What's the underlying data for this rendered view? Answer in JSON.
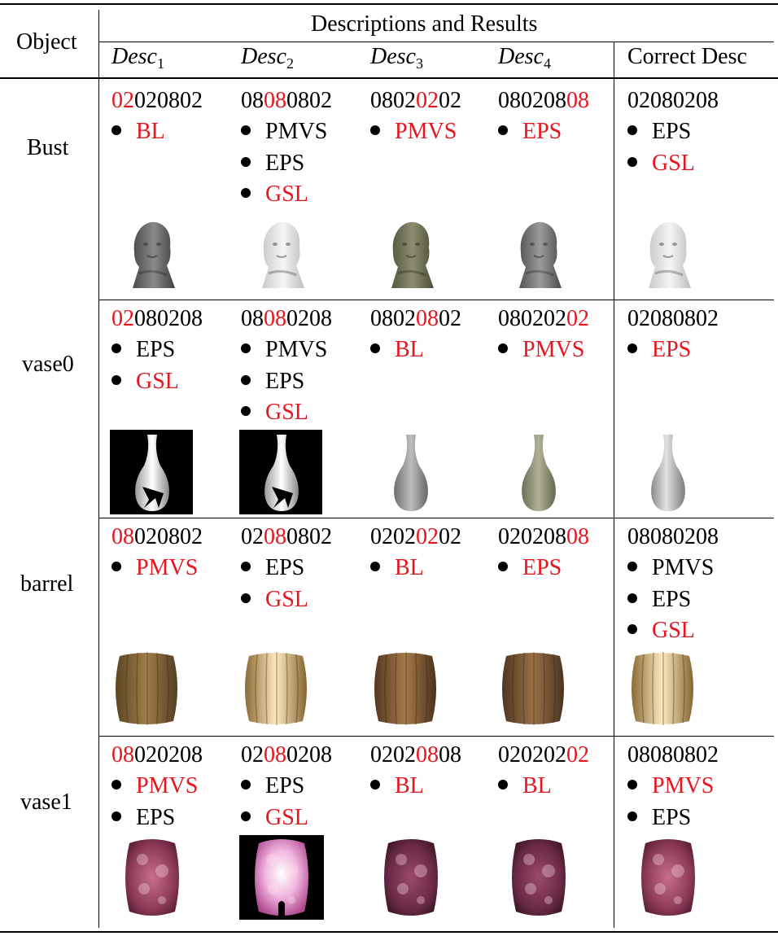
{
  "header": {
    "object": "Object",
    "group": "Descriptions and Results",
    "desc_base": "Desc",
    "desc_subs": [
      "1",
      "2",
      "3",
      "4"
    ],
    "correct": "Correct Desc"
  },
  "colors": {
    "highlight": "#e8141e",
    "text": "#000000"
  },
  "rows": [
    {
      "object": "Bust",
      "cells": [
        {
          "code": [
            [
              "02",
              true
            ],
            [
              "020802",
              false
            ]
          ],
          "methods": [
            [
              "BL",
              true
            ]
          ],
          "thumb": "bust-gray-dark"
        },
        {
          "code": [
            [
              "08",
              false
            ],
            [
              "08",
              true
            ],
            [
              "0802",
              false
            ]
          ],
          "methods": [
            [
              "PMVS",
              false
            ],
            [
              "EPS",
              false
            ],
            [
              "GSL",
              true
            ]
          ],
          "thumb": "bust-white"
        },
        {
          "code": [
            [
              "0802",
              false
            ],
            [
              "02",
              true
            ],
            [
              "02",
              false
            ]
          ],
          "methods": [
            [
              "PMVS",
              true
            ]
          ],
          "thumb": "bust-green"
        },
        {
          "code": [
            [
              "080208",
              false
            ],
            [
              "08",
              true
            ]
          ],
          "methods": [
            [
              "EPS",
              true
            ]
          ],
          "thumb": "bust-gray"
        },
        {
          "code": [
            [
              "02080208",
              false
            ]
          ],
          "methods": [
            [
              "EPS",
              false
            ],
            [
              "GSL",
              true
            ]
          ],
          "thumb": "bust-white"
        }
      ]
    },
    {
      "object": "vase0",
      "cells": [
        {
          "code": [
            [
              "02",
              true
            ],
            [
              "080208",
              false
            ]
          ],
          "methods": [
            [
              "EPS",
              false
            ],
            [
              "GSL",
              true
            ]
          ],
          "thumb": "vase-black-bg"
        },
        {
          "code": [
            [
              "08",
              false
            ],
            [
              "08",
              true
            ],
            [
              "0208",
              false
            ]
          ],
          "methods": [
            [
              "PMVS",
              false
            ],
            [
              "EPS",
              false
            ],
            [
              "GSL",
              true
            ]
          ],
          "thumb": "vase-black-bg"
        },
        {
          "code": [
            [
              "0802",
              false
            ],
            [
              "08",
              true
            ],
            [
              "02",
              false
            ]
          ],
          "methods": [
            [
              "BL",
              true
            ]
          ],
          "thumb": "vase-gray"
        },
        {
          "code": [
            [
              "080202",
              false
            ],
            [
              "02",
              true
            ]
          ],
          "methods": [
            [
              "PMVS",
              true
            ]
          ],
          "thumb": "vase-green"
        },
        {
          "code": [
            [
              "02080802",
              false
            ]
          ],
          "methods": [
            [
              "EPS",
              true
            ]
          ],
          "thumb": "vase-smooth"
        }
      ]
    },
    {
      "object": "barrel",
      "cells": [
        {
          "code": [
            [
              "08",
              true
            ],
            [
              "020802",
              false
            ]
          ],
          "methods": [
            [
              "PMVS",
              true
            ]
          ],
          "thumb": "barrel-dark"
        },
        {
          "code": [
            [
              "02",
              false
            ],
            [
              "08",
              true
            ],
            [
              "0802",
              false
            ]
          ],
          "methods": [
            [
              "EPS",
              false
            ],
            [
              "GSL",
              true
            ]
          ],
          "thumb": "barrel-light"
        },
        {
          "code": [
            [
              "0202",
              false
            ],
            [
              "02",
              true
            ],
            [
              "02",
              false
            ]
          ],
          "methods": [
            [
              "BL",
              true
            ]
          ],
          "thumb": "barrel-wide"
        },
        {
          "code": [
            [
              "020208",
              false
            ],
            [
              "08",
              true
            ]
          ],
          "methods": [
            [
              "EPS",
              true
            ]
          ],
          "thumb": "barrel-striped"
        },
        {
          "code": [
            [
              "08080208",
              false
            ]
          ],
          "methods": [
            [
              "PMVS",
              false
            ],
            [
              "EPS",
              false
            ],
            [
              "GSL",
              true
            ]
          ],
          "thumb": "barrel-light"
        }
      ]
    },
    {
      "object": "vase1",
      "cells": [
        {
          "code": [
            [
              "08",
              true
            ],
            [
              "020208",
              false
            ]
          ],
          "methods": [
            [
              "PMVS",
              true
            ],
            [
              "EPS",
              false
            ]
          ],
          "thumb": "pink-vase"
        },
        {
          "code": [
            [
              "02",
              false
            ],
            [
              "08",
              true
            ],
            [
              "0208",
              false
            ]
          ],
          "methods": [
            [
              "EPS",
              false
            ],
            [
              "GSL",
              true
            ]
          ],
          "thumb": "pink-vase-black-bg"
        },
        {
          "code": [
            [
              "0202",
              false
            ],
            [
              "08",
              true
            ],
            [
              "08",
              false
            ]
          ],
          "methods": [
            [
              "BL",
              true
            ]
          ],
          "thumb": "pink-vase-dark"
        },
        {
          "code": [
            [
              "020202",
              false
            ],
            [
              "02",
              true
            ]
          ],
          "methods": [
            [
              "BL",
              true
            ]
          ],
          "thumb": "pink-vase-dark"
        },
        {
          "code": [
            [
              "08080802",
              false
            ]
          ],
          "methods": [
            [
              "PMVS",
              true
            ],
            [
              "EPS",
              false
            ]
          ],
          "thumb": "pink-vase"
        }
      ]
    }
  ]
}
